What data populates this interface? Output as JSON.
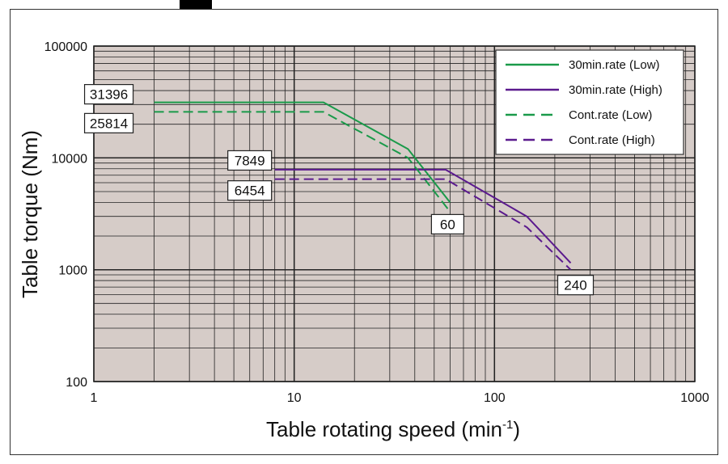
{
  "chart_data": {
    "type": "line",
    "xlabel": "Table rotating speed (min",
    "xlabel_sup": "-1",
    "xlabel_suffix": ")",
    "ylabel": "Table torque (Nm)",
    "xscale": "log",
    "yscale": "log",
    "xlim": [
      1,
      1000
    ],
    "ylim": [
      100,
      100000
    ],
    "grid": true,
    "legend_position": "top-right",
    "x_ticks": [
      "1",
      "10",
      "100",
      "1000"
    ],
    "y_ticks": [
      "100",
      "1000",
      "10000",
      "100000"
    ],
    "series": [
      {
        "name": "30min.rate (Low)",
        "color": "#1a9a4a",
        "dash": "solid",
        "x": [
          2,
          14,
          37,
          60
        ],
        "y": [
          31396,
          31396,
          12000,
          4000
        ]
      },
      {
        "name": "30min.rate (High)",
        "color": "#5b1a8e",
        "dash": "solid",
        "x": [
          8,
          57,
          145,
          240
        ],
        "y": [
          7849,
          7849,
          3000,
          1150
        ]
      },
      {
        "name": "Cont.rate (Low)",
        "color": "#1a9a4a",
        "dash": "dashed",
        "x": [
          2,
          14,
          37,
          60
        ],
        "y": [
          25814,
          25814,
          10000,
          3300
        ]
      },
      {
        "name": "Cont.rate (High)",
        "color": "#5b1a8e",
        "dash": "dashed",
        "x": [
          8,
          57,
          145,
          240
        ],
        "y": [
          6454,
          6454,
          2400,
          1000
        ]
      }
    ],
    "annotations": [
      {
        "text": "31396",
        "x": 2,
        "y": 31396
      },
      {
        "text": "25814",
        "x": 2,
        "y": 25814
      },
      {
        "text": "7849",
        "x": 8,
        "y": 7849
      },
      {
        "text": "6454",
        "x": 8,
        "y": 6454
      },
      {
        "text": "60",
        "x": 60,
        "y": 4000
      },
      {
        "text": "240",
        "x": 240,
        "y": 1000
      }
    ],
    "background": "#d6ccc8",
    "grid_color": "#222222"
  }
}
